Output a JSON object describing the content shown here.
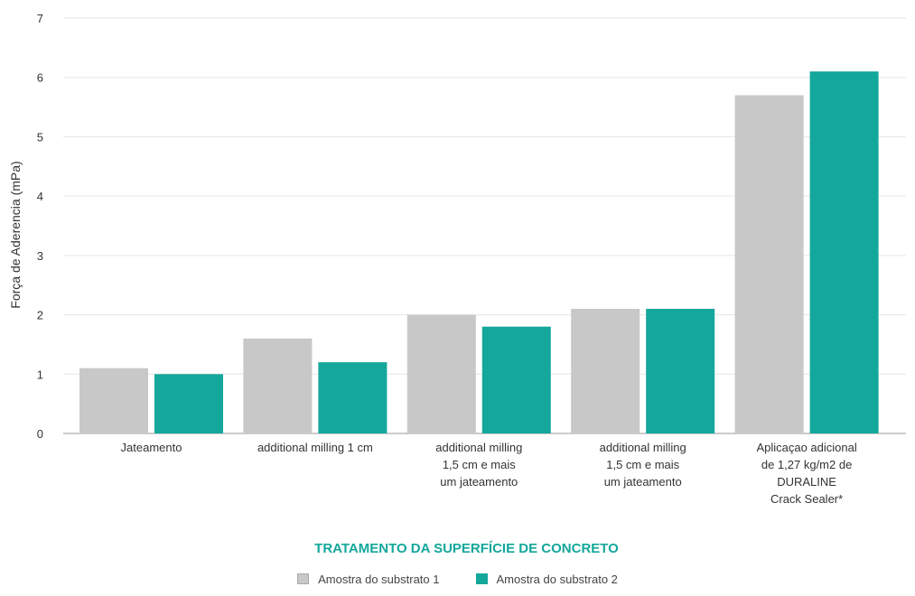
{
  "chart_data": {
    "type": "bar",
    "title": "",
    "xlabel": "TRATAMENTO DA SUPERFÍCIE DE CONCRETO",
    "ylabel": "Força de Aderencia (mPa)",
    "ylim": [
      0,
      7
    ],
    "yticks": [
      0,
      1,
      2,
      3,
      4,
      5,
      6,
      7
    ],
    "grid": true,
    "legend_position": "bottom",
    "categories": [
      [
        "Jateamento"
      ],
      [
        "additional milling 1 cm"
      ],
      [
        "additional milling",
        "1,5 cm e mais",
        "um jateamento"
      ],
      [
        "additional milling",
        "1,5 cm e mais",
        "um jateamento"
      ],
      [
        "Aplicaçao adicional",
        "de 1,27 kg/m2 de",
        "DURALINE",
        "Crack Sealer*"
      ]
    ],
    "series": [
      {
        "name": "Amostra do substrato 1",
        "color": "#c8c8c8",
        "values": [
          1.1,
          1.6,
          2.0,
          2.1,
          5.7
        ]
      },
      {
        "name": "Amostra do substrato 2",
        "color": "#14a79b",
        "values": [
          1.0,
          1.2,
          1.8,
          2.1,
          6.1
        ]
      }
    ],
    "colors": {
      "axis_title": "#14a79b",
      "grid": "#e6e6e6",
      "text": "#333333"
    }
  }
}
